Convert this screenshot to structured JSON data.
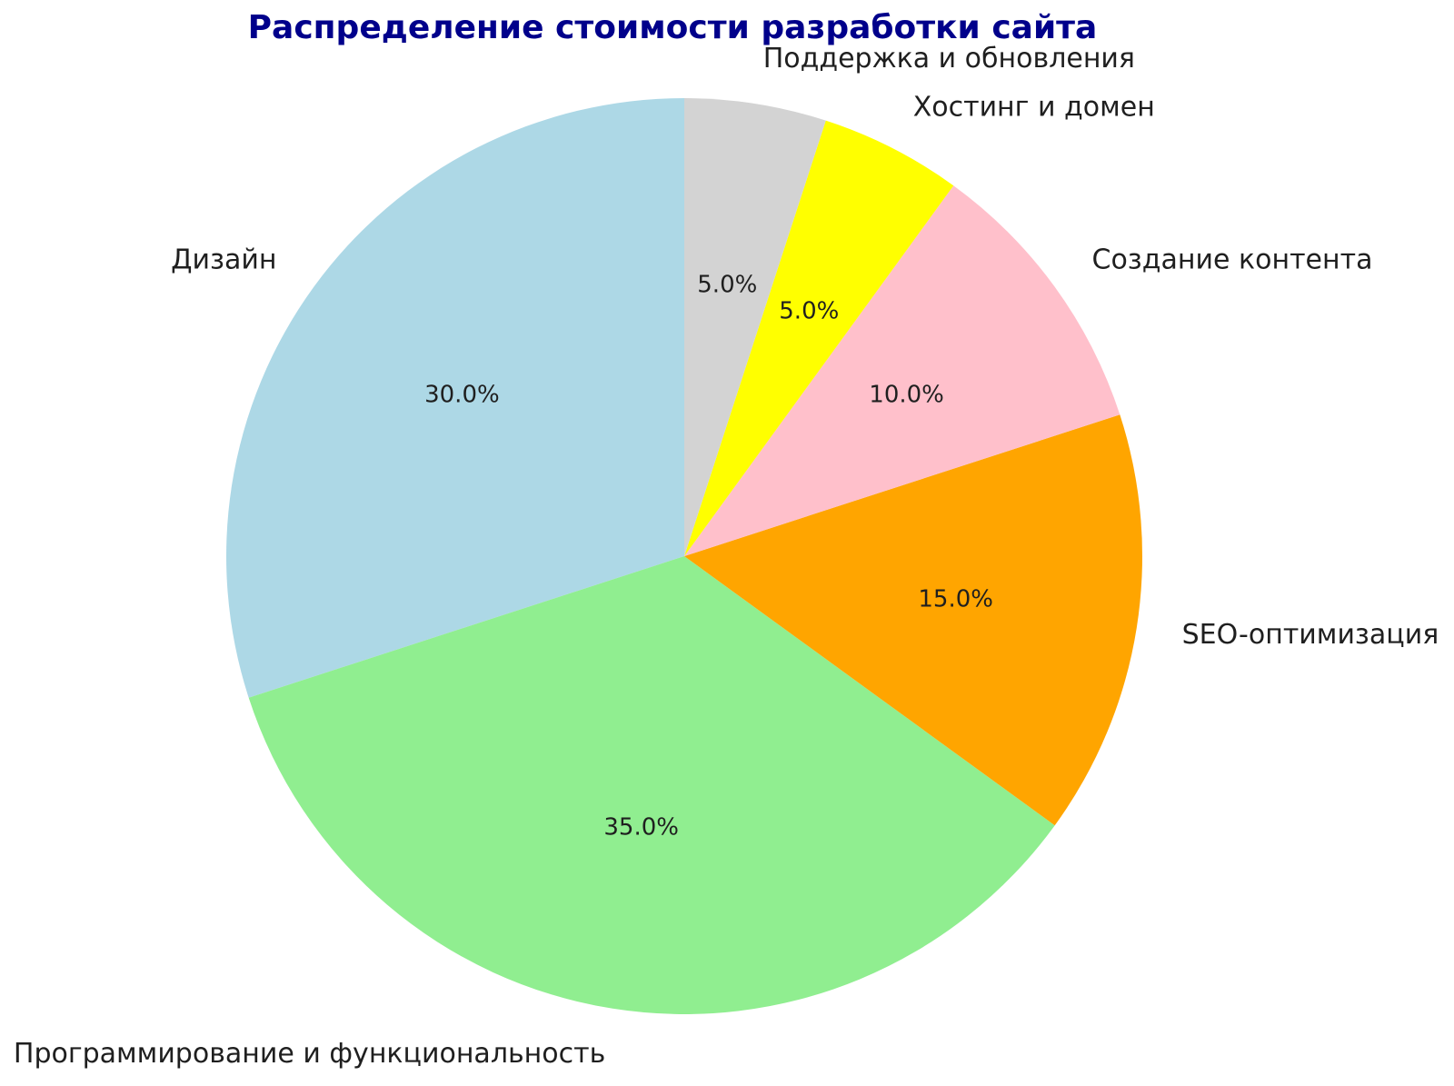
{
  "title": "Распределение стоимости разработки сайта",
  "title_color": "#00008B",
  "background_color": "#FFFFFF",
  "label_text_color": "#1F1F1F",
  "chart_data": {
    "type": "pie",
    "title": "Распределение стоимости разработки сайта",
    "categories": [
      "Дизайн",
      "Программирование и функциональность",
      "SEO-оптимизация",
      "Создание контента",
      "Хостинг и домен",
      "Поддержка и обновления"
    ],
    "values": [
      30,
      35,
      15,
      10,
      5,
      5
    ],
    "percent_labels": [
      "30.0%",
      "35.0%",
      "15.0%",
      "10.0%",
      "5.0%",
      "5.0%"
    ],
    "colors": [
      "#ADD8E6",
      "#90EE90",
      "#FFA500",
      "#FFC0CB",
      "#FFFF00",
      "#D3D3D3"
    ],
    "start_angle": 90,
    "counterclock": true,
    "label_distance": 1.1,
    "pct_distance": 0.6,
    "legend_position": "none",
    "grid": false
  }
}
